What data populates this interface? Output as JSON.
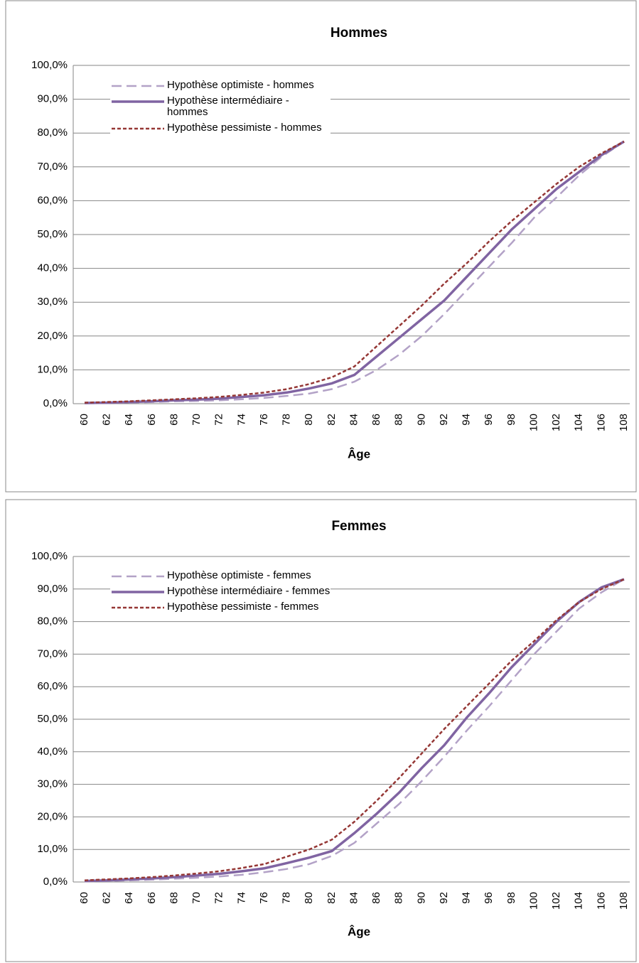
{
  "chart_data": [
    {
      "type": "line",
      "title": "Hommes",
      "x_label": "Âge",
      "categories": [
        "60",
        "62",
        "64",
        "66",
        "68",
        "70",
        "72",
        "74",
        "76",
        "78",
        "80",
        "82",
        "84",
        "86",
        "88",
        "90",
        "92",
        "94",
        "96",
        "98",
        "100",
        "102",
        "104",
        "106",
        "108"
      ],
      "ylim": [
        0,
        100
      ],
      "yticks": [
        {
          "value": 0,
          "label": "0,0%"
        },
        {
          "value": 10,
          "label": "10,0%"
        },
        {
          "value": 20,
          "label": "20,0%"
        },
        {
          "value": 30,
          "label": "30,0%"
        },
        {
          "value": 40,
          "label": "40,0%"
        },
        {
          "value": 50,
          "label": "50,0%"
        },
        {
          "value": 60,
          "label": "60,0%"
        },
        {
          "value": 70,
          "label": "70,0%"
        },
        {
          "value": 80,
          "label": "80,0%"
        },
        {
          "value": 90,
          "label": "90,0%"
        },
        {
          "value": 100,
          "label": "100,0%"
        }
      ],
      "grid": true,
      "legend": "upper left",
      "series": [
        {
          "name": "Hypothèse optimiste - hommes",
          "color": "#b3a2c7",
          "dash": "long",
          "values": [
            0.1,
            0.2,
            0.3,
            0.5,
            0.7,
            0.8,
            1.0,
            1.3,
            1.7,
            2.3,
            3.0,
            4.3,
            6.5,
            10,
            14.5,
            20,
            26.5,
            33.5,
            40.5,
            47.5,
            55,
            61,
            67.5,
            73,
            77.5
          ]
        },
        {
          "name": "Hypothèse intermédiaire - hommes",
          "color": "#8064a2",
          "dash": "solid",
          "values": [
            0.2,
            0.3,
            0.5,
            0.7,
            1.0,
            1.2,
            1.5,
            2.0,
            2.5,
            3.3,
            4.5,
            6.0,
            8.5,
            14,
            19.5,
            25,
            30.5,
            37.5,
            44.5,
            51.5,
            57.5,
            63.5,
            68.5,
            73.5,
            77.5
          ]
        },
        {
          "name": "Hypothèse pessimiste - hommes",
          "color": "#953735",
          "dash": "short",
          "values": [
            0.3,
            0.5,
            0.7,
            1.0,
            1.3,
            1.6,
            2.0,
            2.6,
            3.3,
            4.3,
            5.8,
            7.8,
            11,
            17,
            23,
            29,
            35.5,
            41.5,
            48,
            54,
            59.5,
            65,
            70,
            74,
            77.5
          ]
        }
      ]
    },
    {
      "type": "line",
      "title": "Femmes",
      "x_label": "Âge",
      "categories": [
        "60",
        "62",
        "64",
        "66",
        "68",
        "70",
        "72",
        "74",
        "76",
        "78",
        "80",
        "82",
        "84",
        "86",
        "88",
        "90",
        "92",
        "94",
        "96",
        "98",
        "100",
        "102",
        "104",
        "106",
        "108"
      ],
      "ylim": [
        0,
        100
      ],
      "yticks": [
        {
          "value": 0,
          "label": "0,0%"
        },
        {
          "value": 10,
          "label": "10,0%"
        },
        {
          "value": 20,
          "label": "20,0%"
        },
        {
          "value": 30,
          "label": "30,0%"
        },
        {
          "value": 40,
          "label": "40,0%"
        },
        {
          "value": 50,
          "label": "50,0%"
        },
        {
          "value": 60,
          "label": "60,0%"
        },
        {
          "value": 70,
          "label": "70,0%"
        },
        {
          "value": 80,
          "label": "80,0%"
        },
        {
          "value": 90,
          "label": "90,0%"
        },
        {
          "value": 100,
          "label": "100,0%"
        }
      ],
      "grid": true,
      "legend": "upper left",
      "series": [
        {
          "name": "Hypothèse optimiste - femmes",
          "color": "#b3a2c7",
          "dash": "long",
          "values": [
            0.2,
            0.3,
            0.5,
            0.7,
            1.0,
            1.3,
            1.7,
            2.2,
            3,
            4,
            5.5,
            8,
            12,
            18,
            24,
            31,
            38.5,
            46.5,
            54,
            62,
            70,
            77,
            84,
            89,
            93
          ]
        },
        {
          "name": "Hypothèse intermédiaire - femmes",
          "color": "#8064a2",
          "dash": "solid",
          "values": [
            0.3,
            0.5,
            0.8,
            1.1,
            1.5,
            2.0,
            2.5,
            3.3,
            4.2,
            5.8,
            7.5,
            9.5,
            15,
            21,
            27.5,
            35,
            42,
            50.5,
            58,
            66,
            73,
            80,
            86,
            90.5,
            93
          ]
        },
        {
          "name": "Hypothèse pessimiste - femmes",
          "color": "#953735",
          "dash": "short",
          "values": [
            0.5,
            0.8,
            1.1,
            1.5,
            2.0,
            2.6,
            3.3,
            4.3,
            5.5,
            7.8,
            10,
            13,
            18.5,
            25,
            32,
            39.5,
            47,
            54,
            61,
            68,
            74,
            80.5,
            86,
            90,
            93
          ]
        }
      ]
    }
  ]
}
